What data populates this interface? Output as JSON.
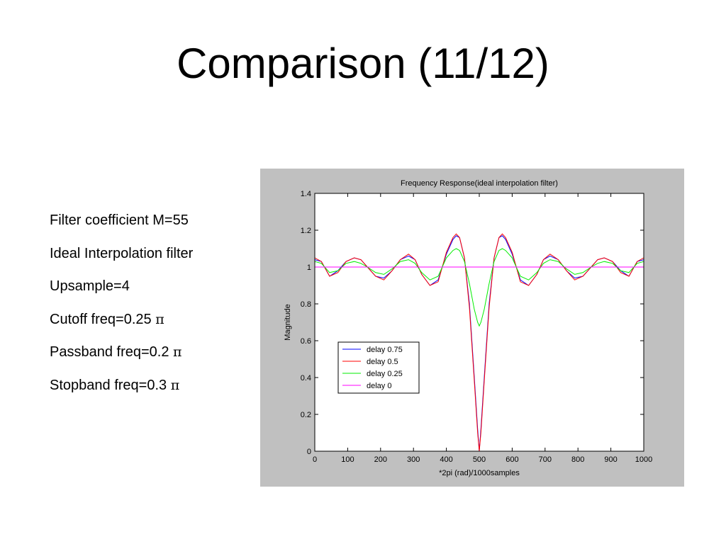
{
  "slide": {
    "title": "Comparison (11/12)",
    "bullets": [
      {
        "text": "Filter coefficient M=55",
        "symbol": ""
      },
      {
        "text": "Ideal Interpolation filter",
        "symbol": ""
      },
      {
        "text": "Upsample=4",
        "symbol": ""
      },
      {
        "text": "Cutoff freq=0.25 ",
        "symbol": "π"
      },
      {
        "text": "Passband freq=0.2 ",
        "symbol": "π"
      },
      {
        "text": "Stopband freq=0.3 ",
        "symbol": "π"
      }
    ]
  },
  "chart_data": {
    "type": "line",
    "title": "Frequency Response(ideal interpolation filter)",
    "xlabel": "*2pi (rad)/1000samples",
    "ylabel": "Magnitude",
    "xlim": [
      0,
      1000
    ],
    "ylim": [
      0,
      1.4
    ],
    "xticks": [
      "0",
      "100",
      "200",
      "300",
      "400",
      "500",
      "600",
      "700",
      "800",
      "900",
      "1000"
    ],
    "yticks": [
      "0",
      "0.2",
      "0.4",
      "0.6",
      "0.8",
      "1",
      "1.2",
      "1.4"
    ],
    "grid": false,
    "legend_position": "lower-left",
    "x": [
      0,
      20,
      45,
      70,
      95,
      120,
      140,
      160,
      185,
      210,
      235,
      260,
      285,
      305,
      325,
      350,
      375,
      400,
      420,
      430,
      440,
      455,
      470,
      485,
      495,
      500,
      505,
      515,
      530,
      545,
      560,
      570,
      580,
      600,
      625,
      650,
      675,
      695,
      715,
      740,
      765,
      790,
      815,
      840,
      860,
      880,
      905,
      930,
      955,
      980,
      1000
    ],
    "series": [
      {
        "name": "delay 0.75",
        "color": "#0000ff",
        "values": [
          1.04,
          1.03,
          0.95,
          0.98,
          1.03,
          1.05,
          1.04,
          1.0,
          0.95,
          0.94,
          0.98,
          1.04,
          1.06,
          1.04,
          0.96,
          0.9,
          0.93,
          1.07,
          1.15,
          1.17,
          1.16,
          1.05,
          0.8,
          0.4,
          0.12,
          0.0,
          0.12,
          0.4,
          0.8,
          1.05,
          1.16,
          1.17,
          1.15,
          1.07,
          0.93,
          0.9,
          0.96,
          1.04,
          1.06,
          1.04,
          0.98,
          0.94,
          0.95,
          1.0,
          1.04,
          1.05,
          1.03,
          0.98,
          0.95,
          1.03,
          1.04
        ]
      },
      {
        "name": "delay 0.5",
        "color": "#ff0000",
        "values": [
          1.05,
          1.03,
          0.95,
          0.97,
          1.03,
          1.05,
          1.04,
          1.0,
          0.95,
          0.93,
          0.98,
          1.04,
          1.07,
          1.04,
          0.96,
          0.9,
          0.92,
          1.08,
          1.16,
          1.18,
          1.16,
          1.05,
          0.78,
          0.38,
          0.1,
          0.0,
          0.1,
          0.38,
          0.78,
          1.05,
          1.16,
          1.18,
          1.16,
          1.08,
          0.92,
          0.9,
          0.96,
          1.04,
          1.07,
          1.04,
          0.98,
          0.93,
          0.95,
          1.0,
          1.04,
          1.05,
          1.03,
          0.97,
          0.95,
          1.03,
          1.05
        ]
      },
      {
        "name": "delay 0.25",
        "color": "#00ee00",
        "values": [
          1.03,
          1.02,
          0.97,
          0.98,
          1.02,
          1.03,
          1.02,
          1.0,
          0.97,
          0.96,
          0.99,
          1.03,
          1.04,
          1.02,
          0.97,
          0.93,
          0.95,
          1.05,
          1.09,
          1.1,
          1.09,
          1.03,
          0.91,
          0.77,
          0.7,
          0.68,
          0.7,
          0.77,
          0.91,
          1.03,
          1.09,
          1.1,
          1.09,
          1.05,
          0.95,
          0.93,
          0.97,
          1.02,
          1.04,
          1.03,
          0.99,
          0.96,
          0.97,
          1.0,
          1.02,
          1.03,
          1.02,
          0.98,
          0.97,
          1.02,
          1.03
        ]
      },
      {
        "name": "delay 0",
        "color": "#ff00ff",
        "values": [
          1,
          1,
          1,
          1,
          1,
          1,
          1,
          1,
          1,
          1,
          1,
          1,
          1,
          1,
          1,
          1,
          1,
          1,
          1,
          1,
          1,
          1,
          1,
          1,
          1,
          1,
          1,
          1,
          1,
          1,
          1,
          1,
          1,
          1,
          1,
          1,
          1,
          1,
          1,
          1,
          1,
          1,
          1,
          1,
          1,
          1,
          1,
          1,
          1,
          1,
          1
        ]
      }
    ]
  }
}
